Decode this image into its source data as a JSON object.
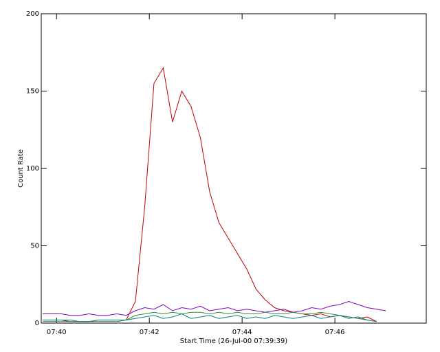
{
  "chart_data": {
    "type": "line",
    "xlabel": "Start Time (26-Jul-00 07:39:39)",
    "ylabel": "Count Rate",
    "x": [
      39.7,
      39.9,
      40.1,
      40.3,
      40.5,
      40.7,
      40.9,
      41.1,
      41.3,
      41.5,
      41.7,
      41.9,
      42.1,
      42.3,
      42.5,
      42.7,
      42.9,
      43.1,
      43.3,
      43.5,
      43.7,
      43.9,
      44.1,
      44.3,
      44.5,
      44.7,
      44.9,
      45.1,
      45.3,
      45.5,
      45.7,
      45.9,
      46.1,
      46.3,
      46.5,
      46.7,
      46.9,
      47.1
    ],
    "xlim": [
      39.67,
      47.97
    ],
    "xticks": [
      {
        "value": 40,
        "label": "07:40"
      },
      {
        "value": 42,
        "label": "07:42"
      },
      {
        "value": 44,
        "label": "07:44"
      },
      {
        "value": 46,
        "label": "07:46"
      }
    ],
    "ylim": [
      0,
      200
    ],
    "yticks": [
      0,
      50,
      100,
      150,
      200
    ],
    "series": [
      {
        "color": "#c00000",
        "values": [
          2,
          2,
          2,
          1,
          1,
          1,
          2,
          2,
          2,
          2,
          14,
          75,
          155,
          165,
          130,
          150,
          140,
          120,
          85,
          65,
          55,
          45,
          35,
          22,
          15,
          10,
          8,
          7,
          6,
          5,
          6,
          4,
          5,
          4,
          3,
          4,
          1,
          null
        ]
      },
      {
        "color": "#8000c0",
        "values": [
          6,
          6,
          6,
          5,
          5,
          6,
          5,
          5,
          6,
          5,
          8,
          10,
          9,
          12,
          8,
          10,
          9,
          11,
          8,
          9,
          10,
          8,
          9,
          8,
          7,
          8,
          9,
          7,
          8,
          10,
          9,
          11,
          12,
          14,
          12,
          10,
          9,
          8
        ]
      },
      {
        "color": "#3a8a3a",
        "values": [
          1,
          1,
          1,
          1,
          1,
          1,
          1,
          1,
          1,
          2,
          5,
          6,
          7,
          6,
          7,
          6,
          7,
          7,
          6,
          7,
          6,
          7,
          6,
          6,
          7,
          6,
          6,
          7,
          6,
          6,
          7,
          6,
          5,
          4,
          3,
          2,
          1,
          null
        ]
      },
      {
        "color": "#008080",
        "values": [
          2,
          2,
          2,
          2,
          1,
          1,
          2,
          2,
          2,
          2,
          3,
          4,
          5,
          3,
          4,
          6,
          3,
          4,
          5,
          3,
          4,
          5,
          3,
          4,
          3,
          5,
          4,
          3,
          4,
          5,
          3,
          4,
          5,
          3,
          4,
          2,
          1,
          null
        ]
      }
    ]
  }
}
